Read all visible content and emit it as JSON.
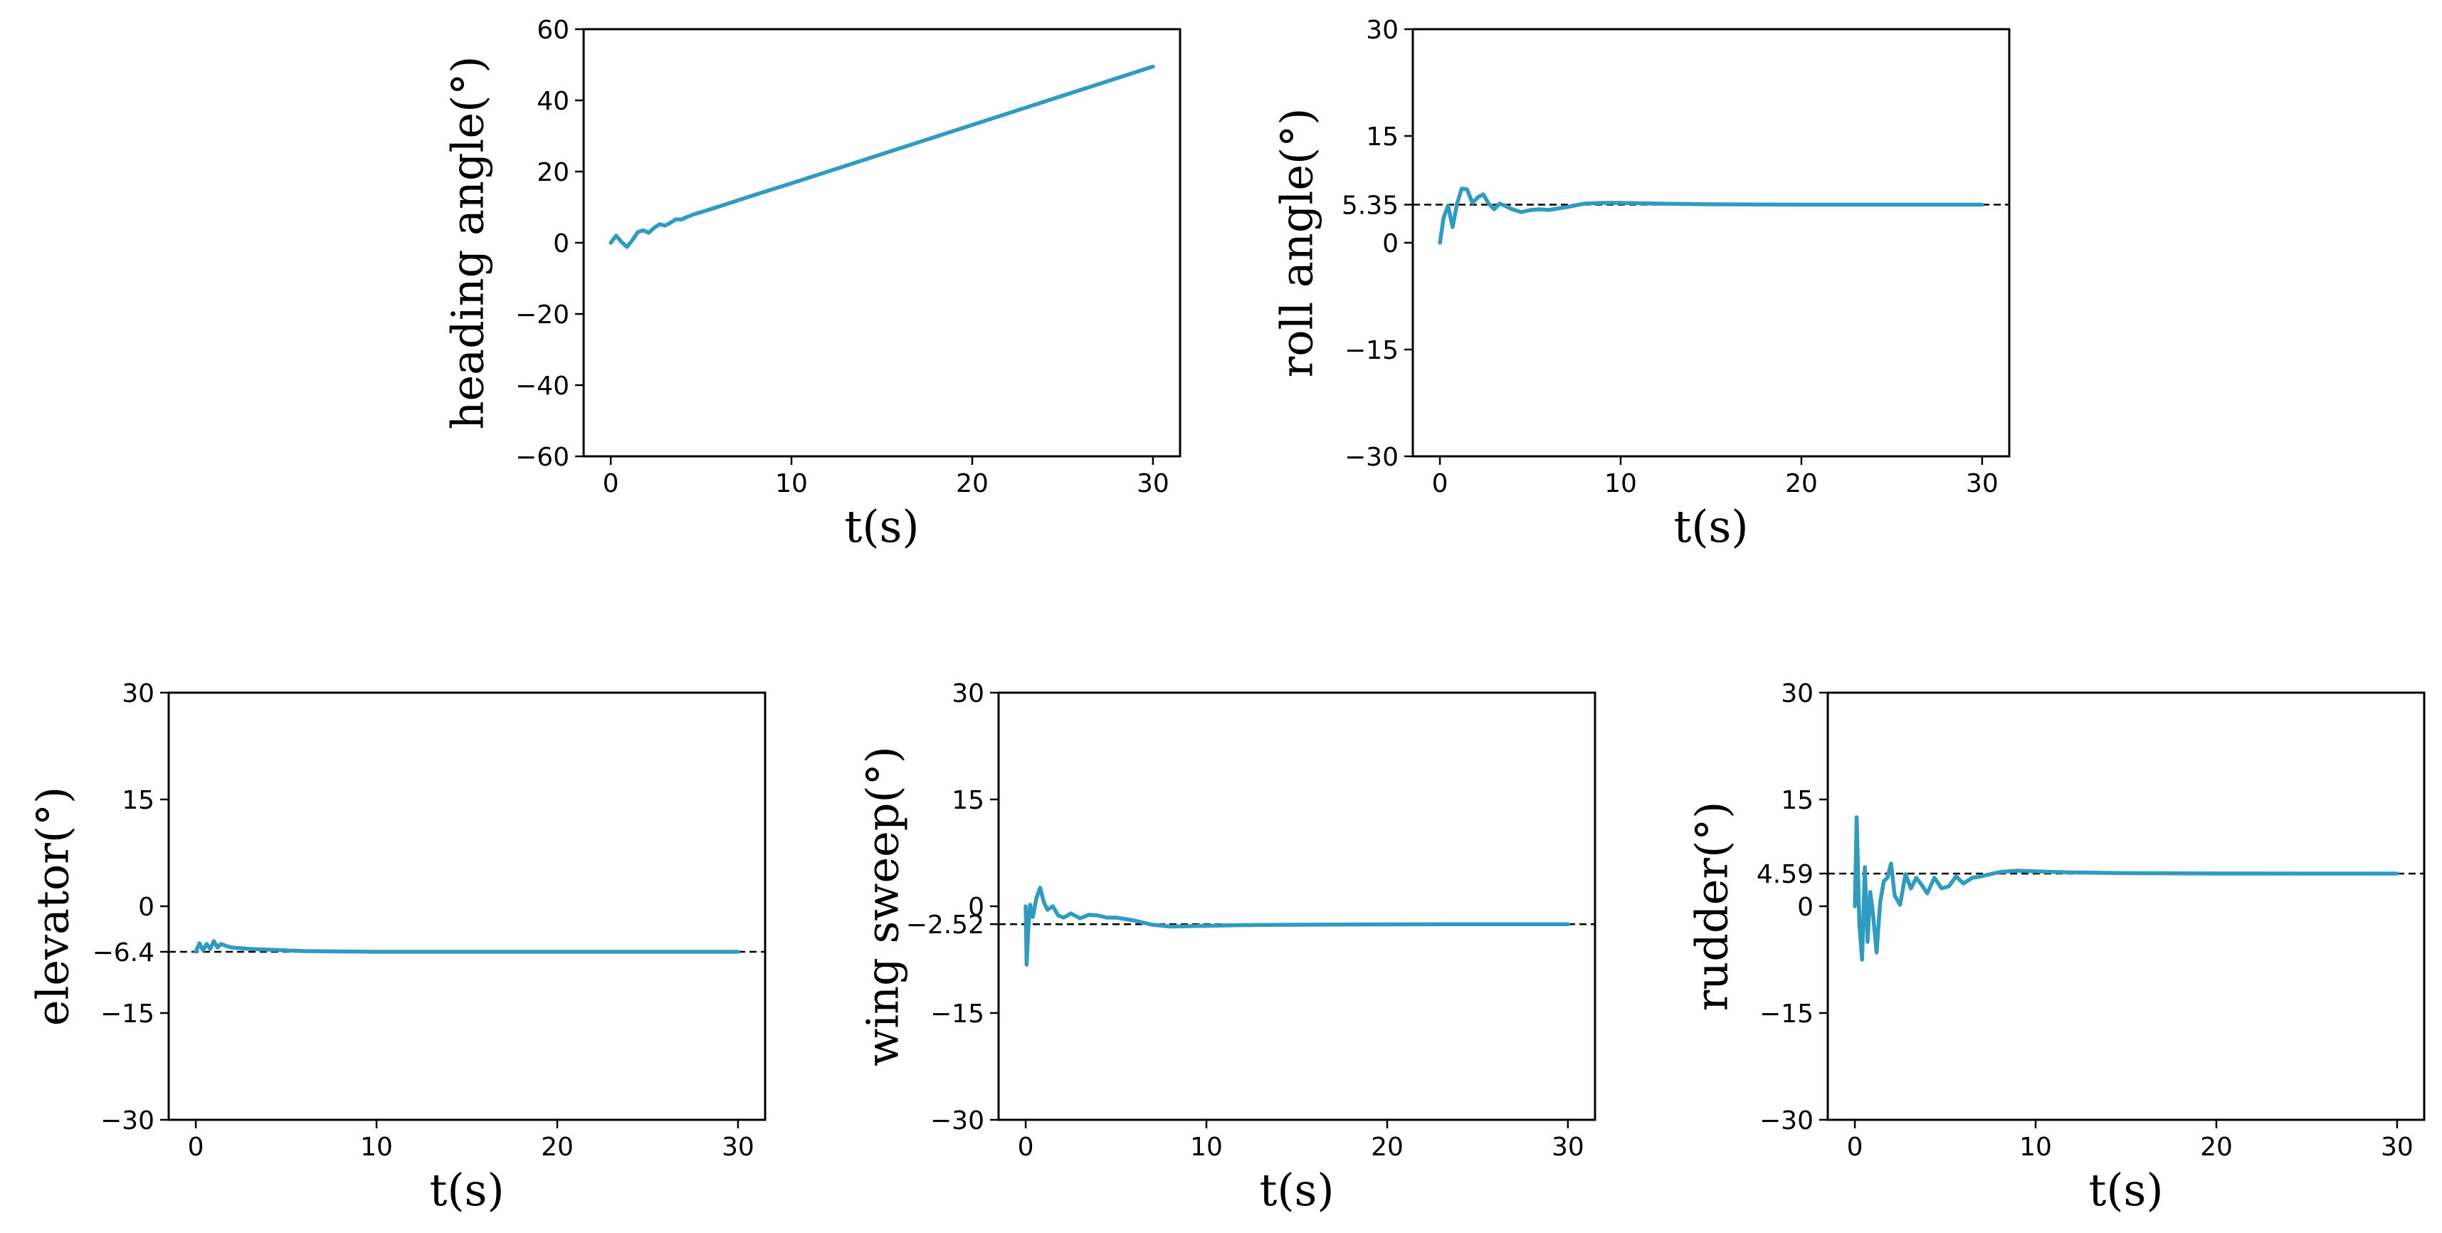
{
  "colors": {
    "series": "#2e9cc1",
    "axis": "#000000",
    "reference": "#000000"
  },
  "chart_data": [
    {
      "id": "heading",
      "type": "line",
      "xlabel": "t(s)",
      "ylabel": "heading angle(°)",
      "xlim": [
        -1.5,
        31.5
      ],
      "ylim": [
        -60,
        60
      ],
      "xticks": [
        0,
        10,
        20,
        30
      ],
      "xtick_labels": [
        "0",
        "10",
        "20",
        "30"
      ],
      "yticks": [
        -60,
        -40,
        -20,
        0,
        20,
        40,
        60
      ],
      "ytick_labels": [
        "−60",
        "−40",
        "−20",
        "0",
        "20",
        "40",
        "60"
      ],
      "reference": null,
      "series": [
        {
          "name": "heading angle",
          "x": [
            0,
            0.3,
            0.6,
            0.9,
            1.2,
            1.5,
            1.8,
            2.1,
            2.4,
            2.7,
            3.0,
            3.3,
            3.6,
            3.9,
            4.2,
            4.6,
            5.0,
            5.5,
            6.0,
            8,
            10,
            15,
            20,
            25,
            30
          ],
          "y": [
            0,
            2.0,
            0.2,
            -1.2,
            0.8,
            3.0,
            3.5,
            2.8,
            4.2,
            5.2,
            4.8,
            5.6,
            6.6,
            6.5,
            7.2,
            8.0,
            8.6,
            9.4,
            10.2,
            13.5,
            16.7,
            24.9,
            33.1,
            41.3,
            49.5
          ]
        }
      ]
    },
    {
      "id": "roll",
      "type": "line",
      "xlabel": "t(s)",
      "ylabel": "roll angle(°)",
      "xlim": [
        -1.5,
        31.5
      ],
      "ylim": [
        -30,
        30
      ],
      "xticks": [
        0,
        10,
        20,
        30
      ],
      "xtick_labels": [
        "0",
        "10",
        "20",
        "30"
      ],
      "yticks": [
        -30,
        -15,
        0,
        15,
        30
      ],
      "ytick_labels": [
        "−30",
        "−15",
        "0",
        "15",
        "30"
      ],
      "reference": {
        "value": 5.35,
        "label": "5.35"
      },
      "series": [
        {
          "name": "roll angle",
          "x": [
            0,
            0.2,
            0.45,
            0.7,
            0.95,
            1.2,
            1.5,
            1.8,
            2.1,
            2.4,
            2.7,
            3.0,
            3.3,
            3.6,
            4.0,
            4.5,
            5.0,
            5.5,
            6.0,
            7.0,
            8.0,
            9.0,
            10.0,
            12,
            15,
            20,
            25,
            30
          ],
          "y": [
            0,
            3.5,
            5.2,
            2.2,
            5.5,
            7.6,
            7.5,
            5.6,
            6.4,
            6.8,
            5.5,
            4.7,
            5.5,
            5.2,
            4.7,
            4.3,
            4.6,
            4.7,
            4.6,
            5.0,
            5.5,
            5.6,
            5.6,
            5.5,
            5.4,
            5.35,
            5.35,
            5.35
          ]
        }
      ]
    },
    {
      "id": "elevator",
      "type": "line",
      "xlabel": "t(s)",
      "ylabel": "elevator(°)",
      "xlim": [
        -1.5,
        31.5
      ],
      "ylim": [
        -30,
        30
      ],
      "xticks": [
        0,
        10,
        20,
        30
      ],
      "xtick_labels": [
        "0",
        "10",
        "20",
        "30"
      ],
      "yticks": [
        -30,
        -15,
        0,
        15,
        30
      ],
      "ytick_labels": [
        "−30",
        "−15",
        "0",
        "15",
        "30"
      ],
      "reference": {
        "value": -6.4,
        "label": "−6.4"
      },
      "series": [
        {
          "name": "elevator",
          "x": [
            0,
            0.2,
            0.4,
            0.6,
            0.8,
            1.0,
            1.2,
            1.4,
            1.7,
            2.0,
            2.5,
            3.0,
            4.0,
            5.0,
            6.0,
            8.0,
            10,
            15,
            20,
            25,
            30
          ],
          "y": [
            -6.4,
            -5.2,
            -6.2,
            -5.3,
            -6.0,
            -4.9,
            -5.8,
            -5.3,
            -5.6,
            -5.8,
            -5.9,
            -6.0,
            -6.1,
            -6.2,
            -6.3,
            -6.35,
            -6.4,
            -6.4,
            -6.4,
            -6.4,
            -6.4
          ]
        }
      ]
    },
    {
      "id": "wing-sweep",
      "type": "line",
      "xlabel": "t(s)",
      "ylabel": "wing sweep(°)",
      "xlim": [
        -1.5,
        31.5
      ],
      "ylim": [
        -30,
        30
      ],
      "xticks": [
        0,
        10,
        20,
        30
      ],
      "xtick_labels": [
        "0",
        "10",
        "20",
        "30"
      ],
      "yticks": [
        -30,
        -15,
        0,
        15,
        30
      ],
      "ytick_labels": [
        "−30",
        "−15",
        "0",
        "15",
        "30"
      ],
      "reference": {
        "value": -2.52,
        "label": "−2.52"
      },
      "series": [
        {
          "name": "wing sweep",
          "x": [
            0,
            0.05,
            0.15,
            0.25,
            0.4,
            0.6,
            0.8,
            1.0,
            1.2,
            1.5,
            1.8,
            2.1,
            2.5,
            3.0,
            3.5,
            4.0,
            4.5,
            5.0,
            6.0,
            7.0,
            8.0,
            9.0,
            10,
            12,
            15,
            20,
            25,
            30
          ],
          "y": [
            0,
            -8.2,
            -3.0,
            0.2,
            -1.5,
            1.2,
            2.6,
            0.6,
            -0.5,
            0.0,
            -1.3,
            -1.6,
            -1.0,
            -1.7,
            -1.2,
            -1.3,
            -1.6,
            -1.6,
            -2.0,
            -2.6,
            -2.85,
            -2.8,
            -2.75,
            -2.65,
            -2.6,
            -2.55,
            -2.52,
            -2.52
          ]
        }
      ]
    },
    {
      "id": "rudder",
      "type": "line",
      "xlabel": "t(s)",
      "ylabel": "rudder(°)",
      "xlim": [
        -1.5,
        31.5
      ],
      "ylim": [
        -30,
        30
      ],
      "xticks": [
        0,
        10,
        20,
        30
      ],
      "xtick_labels": [
        "0",
        "10",
        "20",
        "30"
      ],
      "yticks": [
        -30,
        -15,
        0,
        15,
        30
      ],
      "ytick_labels": [
        "−30",
        "−15",
        "0",
        "15",
        "30"
      ],
      "reference": {
        "value": 4.59,
        "label": "4.59"
      },
      "series": [
        {
          "name": "rudder",
          "x": [
            0,
            0.1,
            0.25,
            0.4,
            0.55,
            0.7,
            0.85,
            1.0,
            1.2,
            1.4,
            1.6,
            1.8,
            2.0,
            2.2,
            2.5,
            2.8,
            3.1,
            3.4,
            3.7,
            4.0,
            4.4,
            4.8,
            5.2,
            5.6,
            6.0,
            6.5,
            7.0,
            8.0,
            9.0,
            10,
            12,
            15,
            20,
            25,
            30
          ],
          "y": [
            0,
            12.5,
            -2.5,
            -7.5,
            5.5,
            -5.0,
            2.0,
            -1.0,
            -6.5,
            0.5,
            3.5,
            4.0,
            6.0,
            1.5,
            0.2,
            4.5,
            2.5,
            4.0,
            3.0,
            1.8,
            4.0,
            2.5,
            2.8,
            4.2,
            3.2,
            4.0,
            4.2,
            4.8,
            5.0,
            4.9,
            4.75,
            4.65,
            4.6,
            4.59,
            4.59
          ]
        }
      ]
    }
  ]
}
